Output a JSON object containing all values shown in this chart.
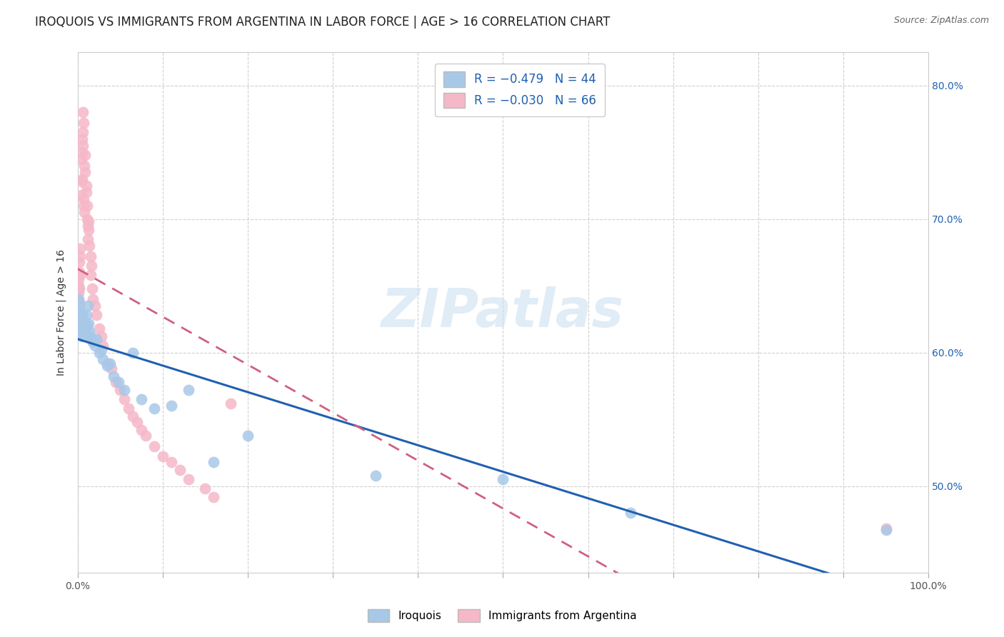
{
  "title": "IROQUOIS VS IMMIGRANTS FROM ARGENTINA IN LABOR FORCE | AGE > 16 CORRELATION CHART",
  "source": "Source: ZipAtlas.com",
  "ylabel": "In Labor Force | Age > 16",
  "watermark": "ZIPatlas",
  "legend_r1": "R = −0.479",
  "legend_n1": "N = 44",
  "legend_r2": "R = −0.030",
  "legend_n2": "N = 66",
  "legend_label1": "Iroquois",
  "legend_label2": "Immigrants from Argentina",
  "iroquois_color": "#a8c8e8",
  "argentina_color": "#f5b8c8",
  "iroquois_line_color": "#2060b0",
  "argentina_line_color": "#d06080",
  "xmin": 0.0,
  "xmax": 1.0,
  "ymin": 0.435,
  "ymax": 0.825,
  "y_ticks": [
    0.5,
    0.6,
    0.7,
    0.8
  ],
  "iroquois_x": [
    0.001,
    0.002,
    0.002,
    0.003,
    0.003,
    0.004,
    0.004,
    0.005,
    0.005,
    0.006,
    0.006,
    0.007,
    0.007,
    0.008,
    0.009,
    0.01,
    0.011,
    0.012,
    0.013,
    0.014,
    0.015,
    0.016,
    0.018,
    0.02,
    0.022,
    0.025,
    0.028,
    0.03,
    0.035,
    0.038,
    0.042,
    0.048,
    0.055,
    0.065,
    0.075,
    0.09,
    0.11,
    0.13,
    0.16,
    0.2,
    0.35,
    0.5,
    0.65,
    0.95
  ],
  "iroquois_y": [
    0.64,
    0.635,
    0.62,
    0.63,
    0.615,
    0.622,
    0.618,
    0.628,
    0.612,
    0.625,
    0.619,
    0.614,
    0.623,
    0.618,
    0.621,
    0.628,
    0.62,
    0.635,
    0.622,
    0.616,
    0.612,
    0.61,
    0.608,
    0.605,
    0.61,
    0.6,
    0.602,
    0.595,
    0.59,
    0.592,
    0.582,
    0.578,
    0.572,
    0.6,
    0.565,
    0.558,
    0.56,
    0.572,
    0.518,
    0.538,
    0.508,
    0.505,
    0.48,
    0.467
  ],
  "argentina_x": [
    0.001,
    0.001,
    0.001,
    0.001,
    0.001,
    0.002,
    0.002,
    0.002,
    0.002,
    0.003,
    0.003,
    0.003,
    0.004,
    0.004,
    0.004,
    0.005,
    0.005,
    0.005,
    0.006,
    0.006,
    0.006,
    0.007,
    0.007,
    0.007,
    0.008,
    0.008,
    0.009,
    0.009,
    0.01,
    0.01,
    0.011,
    0.011,
    0.012,
    0.012,
    0.013,
    0.013,
    0.014,
    0.015,
    0.015,
    0.016,
    0.017,
    0.018,
    0.02,
    0.022,
    0.025,
    0.028,
    0.03,
    0.035,
    0.04,
    0.045,
    0.05,
    0.055,
    0.06,
    0.065,
    0.07,
    0.075,
    0.08,
    0.09,
    0.1,
    0.11,
    0.12,
    0.13,
    0.15,
    0.16,
    0.18,
    0.95
  ],
  "argentina_y": [
    0.645,
    0.65,
    0.658,
    0.648,
    0.655,
    0.66,
    0.648,
    0.638,
    0.668,
    0.672,
    0.658,
    0.678,
    0.718,
    0.728,
    0.745,
    0.75,
    0.76,
    0.73,
    0.755,
    0.765,
    0.78,
    0.772,
    0.715,
    0.71,
    0.705,
    0.74,
    0.748,
    0.735,
    0.725,
    0.72,
    0.7,
    0.71,
    0.695,
    0.685,
    0.698,
    0.692,
    0.68,
    0.672,
    0.658,
    0.665,
    0.648,
    0.64,
    0.635,
    0.628,
    0.618,
    0.612,
    0.605,
    0.592,
    0.588,
    0.578,
    0.572,
    0.565,
    0.558,
    0.552,
    0.548,
    0.542,
    0.538,
    0.53,
    0.522,
    0.518,
    0.512,
    0.505,
    0.498,
    0.492,
    0.562,
    0.468
  ],
  "grid_color": "#cccccc",
  "title_fontsize": 12,
  "ylabel_fontsize": 10,
  "tick_fontsize": 10,
  "right_axis_color": "#2060b0",
  "background_color": "#ffffff"
}
